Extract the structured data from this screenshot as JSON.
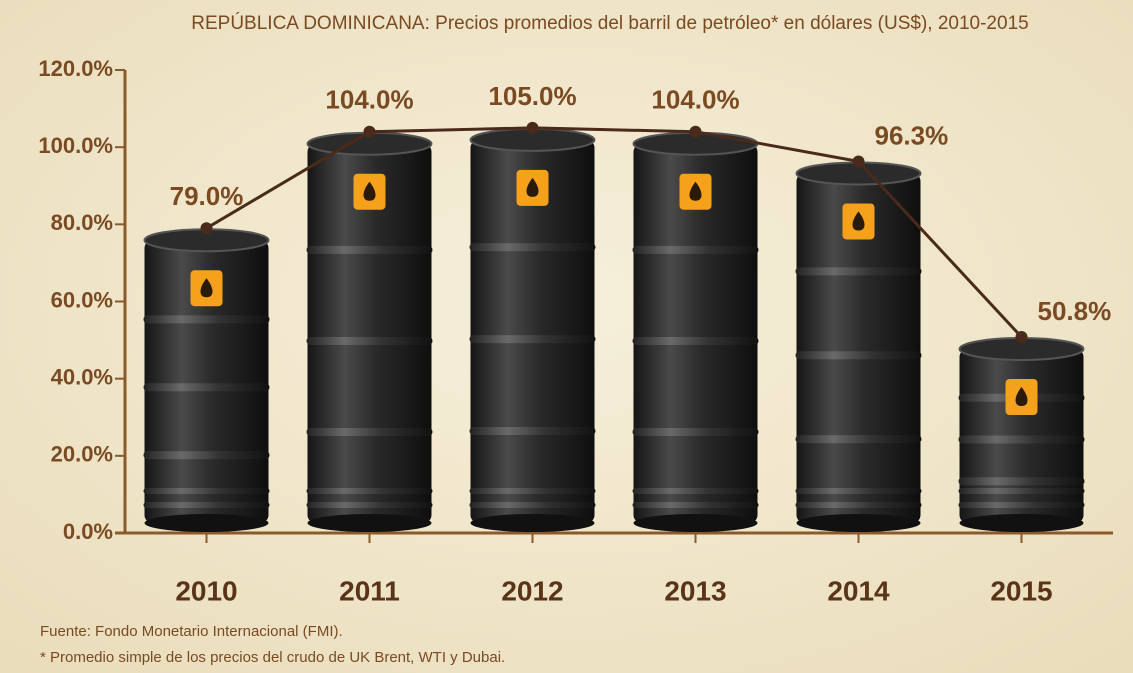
{
  "chart_data": {
    "type": "barrel",
    "title": "REPÚBLICA DOMINICANA: Precios promedios del barril de petróleo* en dólares (US$), 2010-2015",
    "categories": [
      "2010",
      "2011",
      "2012",
      "2013",
      "2014",
      "2015"
    ],
    "values": [
      79.0,
      104.0,
      105.0,
      104.0,
      96.3,
      50.8
    ],
    "value_labels": [
      "79.0%",
      "104.0%",
      "105.0%",
      "104.0%",
      "96.3%",
      "50.8%"
    ],
    "color": "#3a3a3a",
    "line_color": "#4a2a1a",
    "ylim": [
      0,
      120
    ],
    "yticks": [
      {
        "value": 0,
        "label": "0.0%"
      },
      {
        "value": 20,
        "label": "20.0%"
      },
      {
        "value": 40,
        "label": "40.0%"
      },
      {
        "value": 60,
        "label": "60.0%"
      },
      {
        "value": 80,
        "label": "80.0%"
      },
      {
        "value": 100,
        "label": "100.0%"
      },
      {
        "value": 120,
        "label": "120.0%"
      }
    ],
    "source": "Fuente: Fondo Monetario Internacional (FMI).",
    "note": "* Promedio simple de los precios del crudo de UK Brent, WTI y Dubai."
  }
}
